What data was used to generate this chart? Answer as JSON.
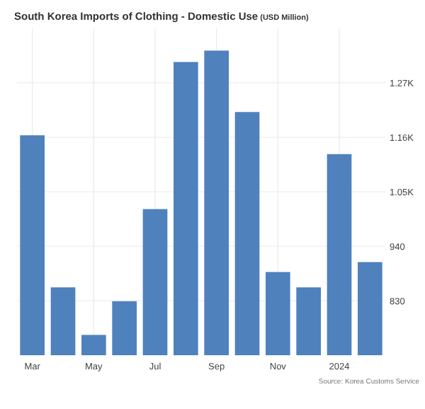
{
  "chart_data": {
    "type": "bar",
    "title": "South Korea Imports of Clothing - Domestic Use",
    "subtitle": "(USD Million)",
    "categories": [
      "Mar",
      null,
      "May",
      null,
      "Jul",
      null,
      "Sep",
      null,
      "Nov",
      null,
      "2024",
      null
    ],
    "values": [
      1164,
      857,
      761,
      829,
      1015,
      1312,
      1335,
      1211,
      888,
      857,
      1126,
      908
    ],
    "color": "#4f81bd",
    "ylim": [
      720,
      1380
    ],
    "yticks": [
      830,
      940,
      {
        "value": 1050,
        "label": "1.05K"
      },
      {
        "value": 1160,
        "label": "1.16K"
      },
      {
        "value": 1270,
        "label": "1.27K"
      }
    ],
    "grid": true,
    "annotations": [
      "Source: Korea Customs Service"
    ]
  }
}
